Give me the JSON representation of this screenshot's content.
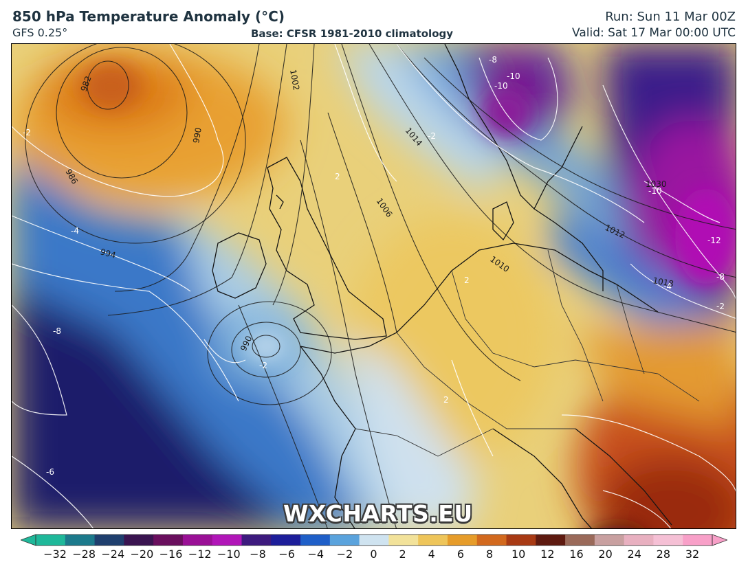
{
  "header": {
    "title": "850 hPa Temperature Anomaly (°C)",
    "model": "GFS 0.25°",
    "base": "Base: CFSR 1981-2010 climatology",
    "run": "Run: Sun 11 Mar 00Z",
    "valid": "Valid: Sat 17 Mar 00:00 UTC"
  },
  "map": {
    "region": "Europe and North Atlantic",
    "pressure_labels": [
      "982",
      "986",
      "990",
      "994",
      "990",
      "1002",
      "1006",
      "1010",
      "1012",
      "1014",
      "1018",
      "1030"
    ],
    "anomaly_labels": [
      "-2",
      "-4",
      "-6",
      "-8",
      "-8",
      "-8",
      "-10",
      "-10",
      "-10",
      "-12",
      "-2",
      "-4",
      "2",
      "2",
      "2",
      "-2",
      "-2"
    ]
  },
  "watermark": "WXCHARTS.EU",
  "colorbar": {
    "ticks": [
      "−32",
      "−28",
      "−24",
      "−20",
      "−16",
      "−12",
      "−10",
      "−8",
      "−6",
      "−4",
      "−2",
      "0",
      "2",
      "4",
      "6",
      "8",
      "10",
      "12",
      "16",
      "20",
      "24",
      "28",
      "32"
    ],
    "colors": [
      "#1fb89a",
      "#1c7a8c",
      "#1f3f6e",
      "#3a1450",
      "#6a0f5e",
      "#9a1096",
      "#b116b8",
      "#3d1a7e",
      "#1d1e9a",
      "#1f5fc8",
      "#5aa3dd",
      "#cfe3f0",
      "#f2e29a",
      "#eec55a",
      "#e69c2a",
      "#d2691e",
      "#a83a14",
      "#5e1a10",
      "#9a6a5a",
      "#c8a0a0",
      "#e8b0c0",
      "#f5c0d5",
      "#f8a0c8"
    ]
  }
}
